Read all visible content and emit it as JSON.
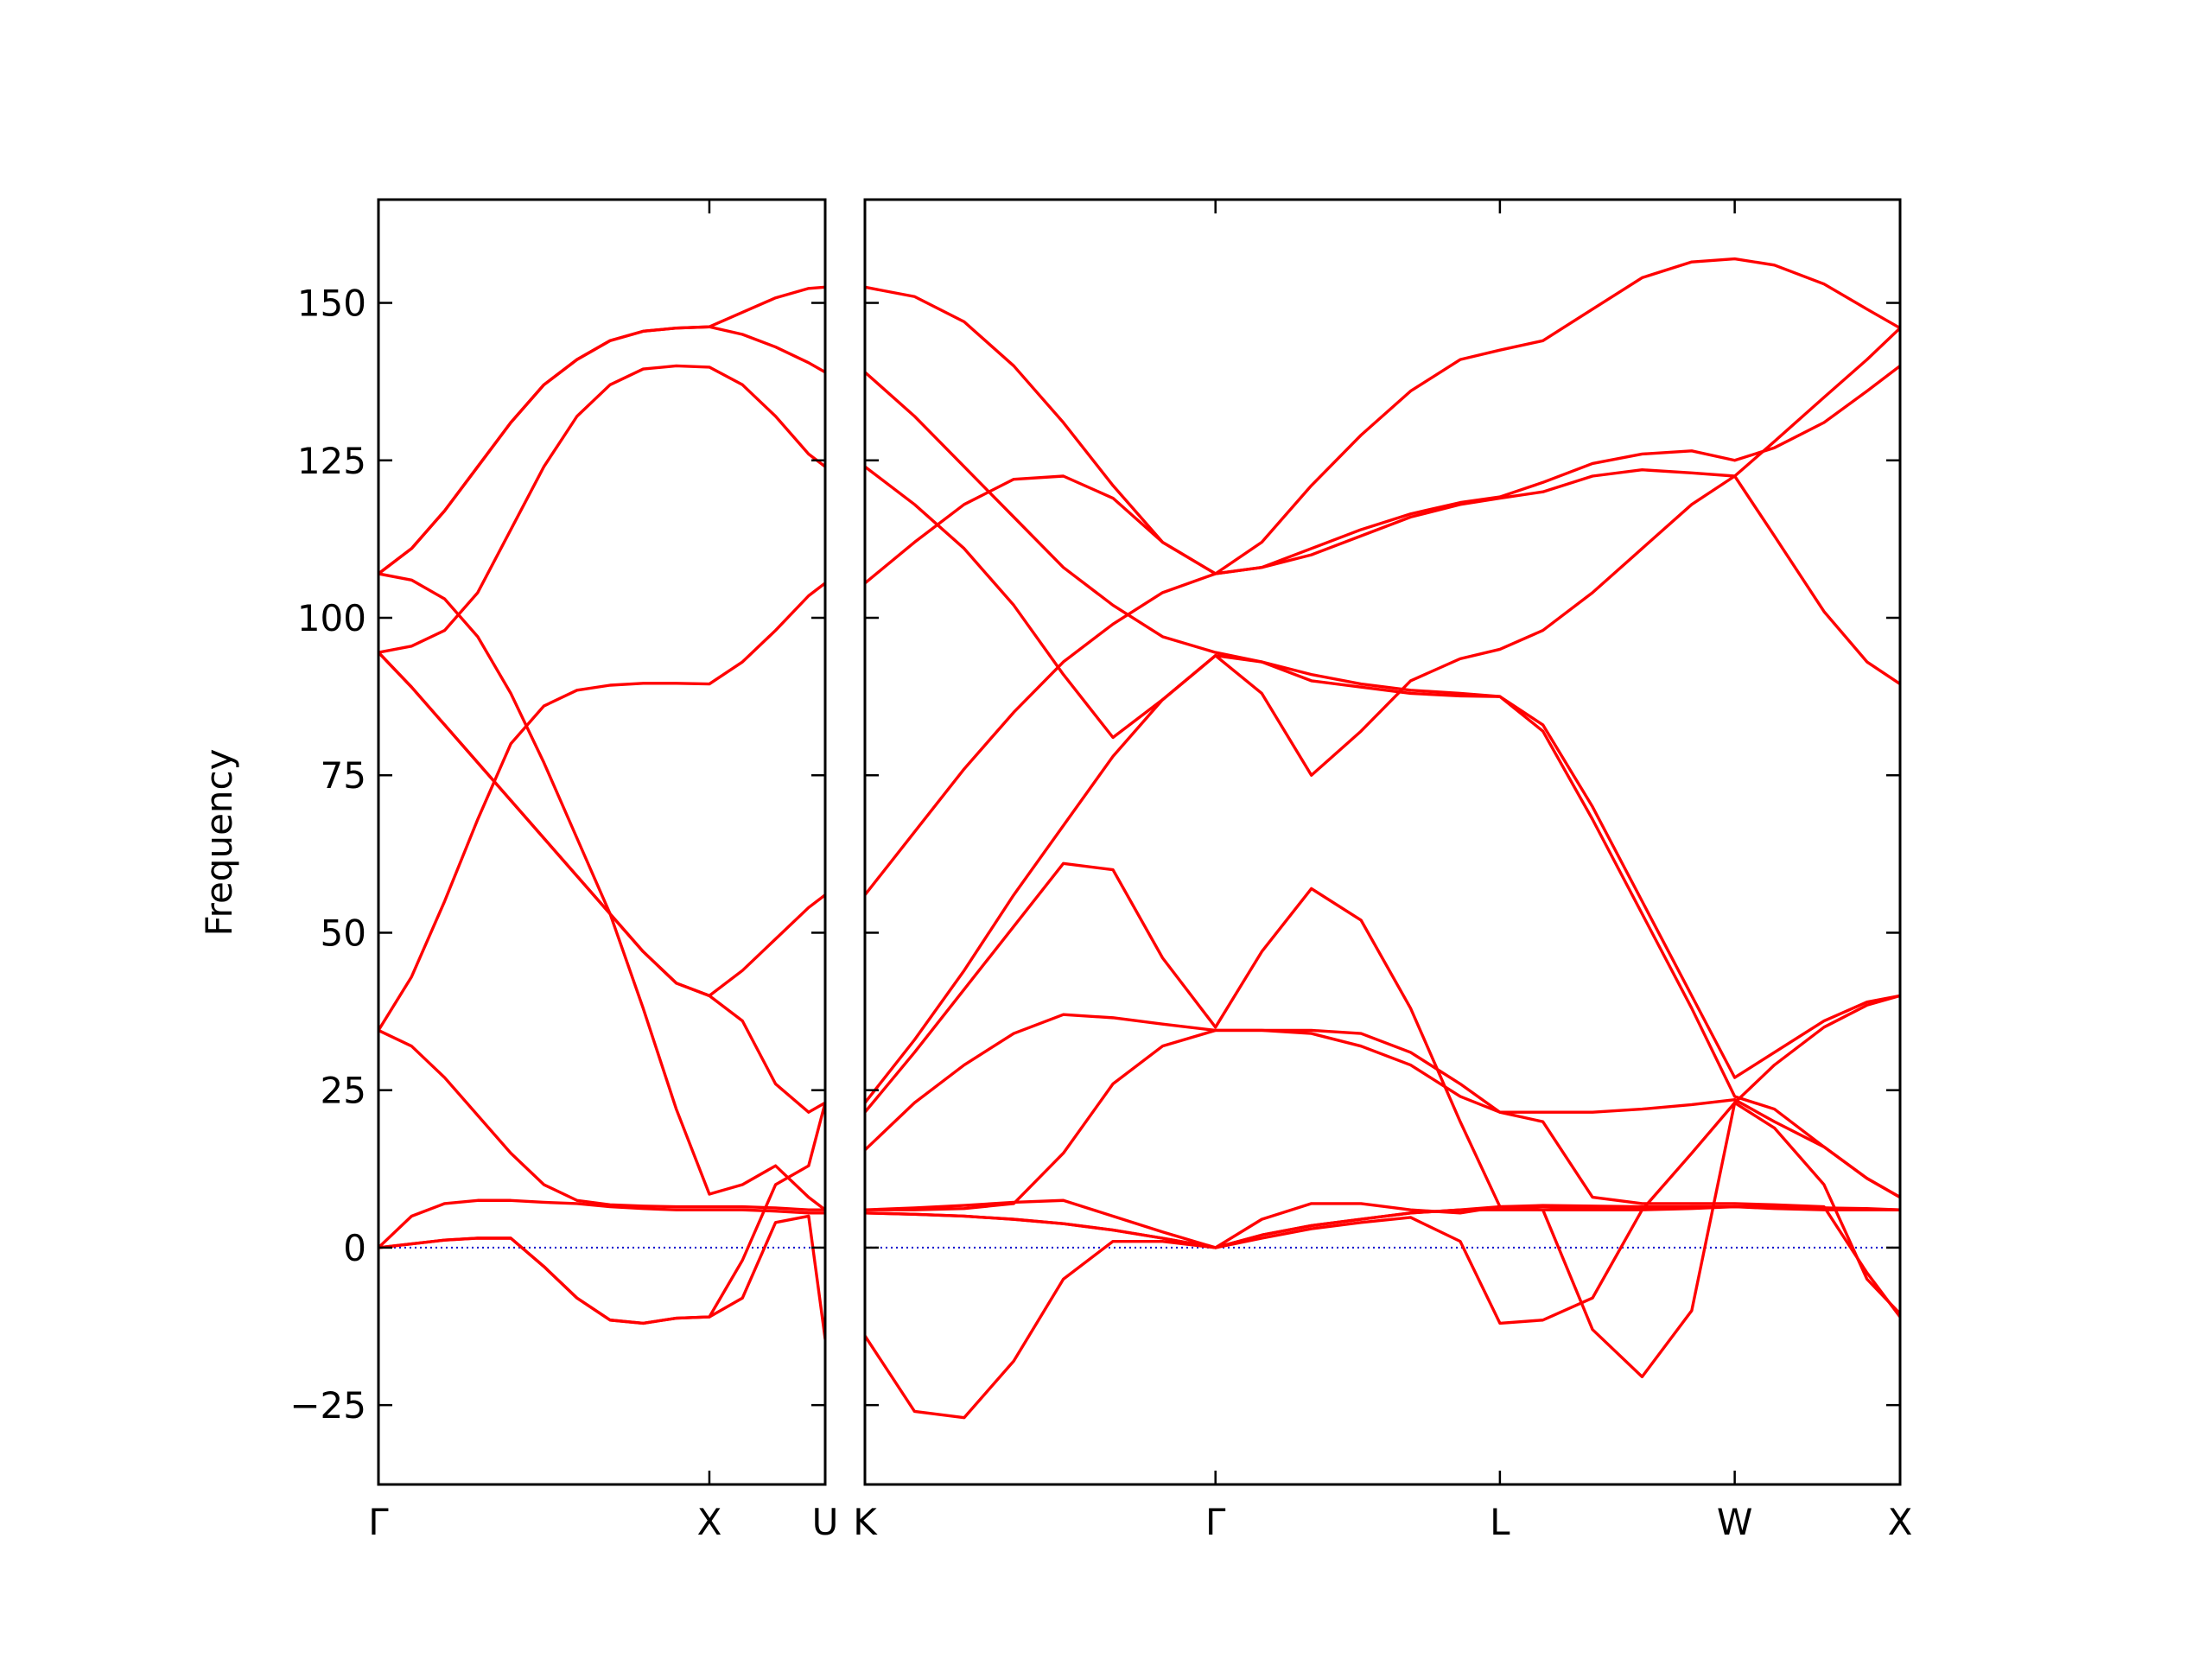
{
  "chart_data": [
    {
      "type": "line",
      "ylabel": "Frequency",
      "xlim": [
        0,
        1.35
      ],
      "ylim": [
        -37.6,
        166.4
      ],
      "xticks": [
        {
          "value": 0,
          "label": "Γ"
        },
        {
          "value": 1,
          "label": "X"
        },
        {
          "value": 1.35,
          "label": "U"
        }
      ],
      "yticks": [
        {
          "value": -25,
          "label": "−25"
        },
        0,
        25,
        50,
        75,
        100,
        125,
        150
      ],
      "zero_line": true,
      "zero_line_color": "#0000cc",
      "x": [
        0,
        0.1,
        0.2,
        0.3,
        0.4,
        0.5,
        0.6,
        0.7,
        0.8,
        0.9,
        1.0,
        1.1,
        1.2,
        1.3,
        1.35
      ],
      "series": [
        {
          "color": "#ff0000",
          "values": [
            107,
            111,
            117,
            124,
            131,
            137,
            141,
            144,
            145.5,
            146,
            146.2,
            148.5,
            150.8,
            152.3,
            152.5
          ]
        },
        {
          "color": "#ff0000",
          "values": [
            107,
            111,
            117,
            124,
            131,
            137,
            141,
            144,
            145.5,
            146,
            146.2,
            145,
            143,
            140.5,
            139
          ]
        },
        {
          "color": "#ff0000",
          "values": [
            94.5,
            95.5,
            98,
            104,
            114,
            124,
            132,
            137,
            139.5,
            140,
            139.8,
            137,
            132,
            126,
            124
          ]
        },
        {
          "color": "#ff0000",
          "values": [
            107,
            106,
            103,
            97,
            88,
            77,
            65,
            53,
            38,
            22,
            8.5,
            10,
            13,
            8,
            6
          ]
        },
        {
          "color": "#ff0000",
          "values": [
            94.5,
            89,
            83,
            77,
            71,
            65,
            59,
            53,
            47,
            42,
            40,
            36,
            26,
            21.5,
            23
          ]
        },
        {
          "color": "#ff0000",
          "values": [
            94.5,
            89,
            83,
            77,
            71,
            65,
            59,
            53,
            47,
            42,
            40,
            44,
            49,
            54,
            56
          ]
        },
        {
          "color": "#ff0000",
          "values": [
            34.5,
            43,
            55,
            68,
            80,
            86,
            88.5,
            89.3,
            89.6,
            89.6,
            89.5,
            93,
            98,
            103.5,
            105.5
          ]
        },
        {
          "color": "#ff0000",
          "values": [
            34.5,
            32,
            27,
            21,
            15,
            10,
            7.5,
            6.8,
            6.6,
            6.5,
            6.5,
            6.5,
            6.3,
            6,
            6
          ]
        },
        {
          "color": "#ff0000",
          "values": [
            0,
            5,
            7,
            7.5,
            7.5,
            7.2,
            7,
            6.5,
            6.2,
            6,
            6,
            6,
            5.8,
            5.5,
            5.5
          ]
        },
        {
          "color": "#ff0000",
          "values": [
            0,
            0.6,
            1.2,
            1.5,
            1.5,
            -3,
            -8,
            -11.5,
            -12,
            -11.2,
            -11,
            -8,
            4,
            5,
            -14.5
          ]
        },
        {
          "color": "#ff0000",
          "values": [
            0,
            0.6,
            1.2,
            1.5,
            1.5,
            -3,
            -8,
            -11.5,
            -12,
            -11.2,
            -11,
            -2,
            10,
            13,
            23
          ]
        }
      ]
    },
    {
      "type": "line",
      "sharey": true,
      "xlim": [
        1.35,
        4.48
      ],
      "xticks": [
        {
          "value": 1.35,
          "label": "K"
        },
        {
          "value": 2.41,
          "label": "Γ"
        },
        {
          "value": 3.27,
          "label": "L"
        },
        {
          "value": 3.98,
          "label": "W"
        },
        {
          "value": 4.48,
          "label": "X"
        }
      ],
      "zero_line": true,
      "zero_line_color": "#0000cc",
      "x": [
        1.35,
        1.5,
        1.65,
        1.8,
        1.95,
        2.1,
        2.25,
        2.41,
        2.55,
        2.7,
        2.85,
        3.0,
        3.15,
        3.27,
        3.4,
        3.55,
        3.7,
        3.85,
        3.98,
        4.1,
        4.25,
        4.38,
        4.48
      ],
      "series": [
        {
          "color": "#ff0000",
          "values": [
            152.5,
            151,
            147,
            140,
            131,
            121,
            112,
            107,
            112,
            121,
            129,
            136,
            141,
            142.5,
            144,
            149,
            154,
            156.5,
            157,
            156,
            153,
            149,
            146
          ]
        },
        {
          "color": "#ff0000",
          "values": [
            139,
            132,
            124,
            116,
            108,
            102,
            97,
            94.5,
            93,
            91,
            89.5,
            88.5,
            88,
            87.5,
            83,
            70,
            55,
            40,
            27,
            31,
            36,
            39,
            40
          ]
        },
        {
          "color": "#ff0000",
          "values": [
            124,
            118,
            111,
            102,
            91,
            81,
            87,
            94,
            88,
            75,
            82,
            90,
            93.5,
            95,
            98,
            104,
            111,
            118,
            122.5,
            128,
            135,
            141,
            146
          ]
        },
        {
          "color": "#ff0000",
          "values": [
            105.5,
            112,
            118,
            122,
            122.5,
            119,
            112,
            107,
            108,
            111,
            114,
            116.5,
            118.3,
            119.2,
            121.5,
            124.5,
            126,
            126.5,
            125,
            127,
            131,
            136,
            140
          ]
        },
        {
          "color": "#ff0000",
          "values": [
            56,
            66,
            76,
            85,
            93,
            99,
            104,
            107,
            108,
            110,
            113,
            116,
            118,
            119,
            120,
            122.5,
            123.5,
            123,
            122.5,
            113,
            101,
            93,
            89.5
          ]
        },
        {
          "color": "#ff0000",
          "values": [
            23,
            33,
            44,
            56,
            67,
            78,
            87,
            94,
            93,
            90,
            89,
            88,
            87.6,
            87.5,
            82,
            68,
            53,
            38,
            24,
            22,
            16,
            11,
            8
          ]
        },
        {
          "color": "#ff0000",
          "values": [
            21.5,
            31,
            41,
            51,
            61,
            60,
            46,
            35,
            47,
            57,
            52,
            38,
            20,
            6.5,
            6.5,
            6.3,
            6.2,
            6.5,
            6.5,
            6.5,
            6.3,
            6.2,
            6
          ]
        },
        {
          "color": "#ff0000",
          "values": [
            15.5,
            23,
            29,
            34,
            37,
            36.5,
            35.5,
            34.5,
            34.5,
            34,
            32,
            29,
            24,
            21.5,
            21.5,
            21.5,
            22,
            22.7,
            23.5,
            20,
            16,
            11,
            8
          ]
        },
        {
          "color": "#ff0000",
          "values": [
            6,
            6,
            6.2,
            7,
            15,
            26,
            32,
            34.5,
            34.5,
            34.5,
            34,
            31,
            26,
            21.5,
            20,
            8,
            7,
            7,
            7,
            6.8,
            6.5,
            -4,
            -11
          ]
        },
        {
          "color": "#ff0000",
          "values": [
            6,
            6.3,
            6.7,
            7.2,
            7.5,
            5,
            2.5,
            0,
            4.5,
            7,
            7,
            6,
            5.5,
            6.5,
            6.7,
            6.6,
            6.5,
            6.5,
            6.5,
            6.5,
            6.3,
            6.1,
            6
          ]
        },
        {
          "color": "#ff0000",
          "values": [
            5.5,
            5.3,
            5,
            4.5,
            3.8,
            2.8,
            1.5,
            0,
            2,
            3.5,
            4.5,
            5.5,
            6,
            6,
            6,
            6,
            6,
            6.2,
            6.5,
            6.2,
            6,
            6,
            6
          ]
        },
        {
          "color": "#ff0000",
          "values": [
            -14,
            -26,
            -27,
            -18,
            -5,
            1,
            1,
            0,
            1.5,
            3,
            4,
            4.8,
            1,
            -12,
            -11.5,
            -8,
            6,
            15,
            23,
            29,
            35,
            38.5,
            40
          ]
        },
        {
          "color": "#ff0000",
          "values": [
            5.5,
            5.3,
            5,
            4.5,
            3.8,
            2.8,
            1.5,
            0,
            2,
            3.5,
            4.5,
            5.5,
            6,
            6.5,
            6,
            -13,
            -20.5,
            -10,
            23,
            19,
            10,
            -5,
            -10.5
          ]
        }
      ]
    }
  ]
}
